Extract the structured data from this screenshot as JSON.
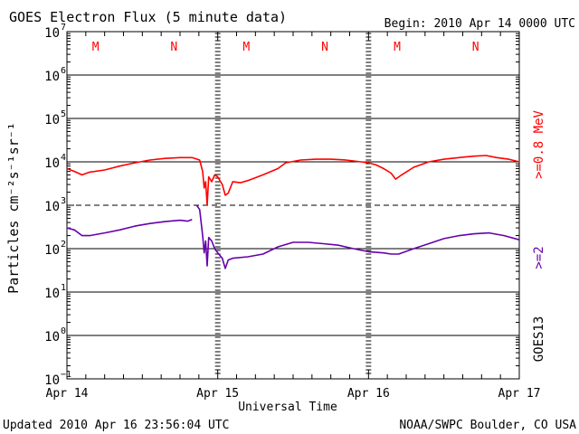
{
  "chart_data": {
    "type": "line",
    "title": "GOES Electron Flux (5 minute data)",
    "begin_label": "Begin: 2010 Apr 14 0000 UTC",
    "xlabel": "Universal Time",
    "ylabel": "Particles cm⁻²s⁻¹sr⁻¹",
    "x_unit": "days since 2010 Apr 14 0000 UTC",
    "xlim": [
      0,
      3
    ],
    "ylim_log10": [
      -1,
      7
    ],
    "y_ticks": [
      {
        "exp": 7,
        "label": "10",
        "sup": "7"
      },
      {
        "exp": 6,
        "label": "10",
        "sup": "6"
      },
      {
        "exp": 5,
        "label": "10",
        "sup": "5"
      },
      {
        "exp": 4,
        "label": "10",
        "sup": "4"
      },
      {
        "exp": 3,
        "label": "10",
        "sup": "3"
      },
      {
        "exp": 2,
        "label": "10",
        "sup": "2"
      },
      {
        "exp": 1,
        "label": "10",
        "sup": "1"
      },
      {
        "exp": 0,
        "label": "10",
        "sup": "0"
      },
      {
        "exp": -1,
        "label": "10",
        "sup": "−1"
      }
    ],
    "x_ticks": [
      {
        "x": 0,
        "label": "Apr 14"
      },
      {
        "x": 1,
        "label": "Apr 15"
      },
      {
        "x": 2,
        "label": "Apr 16"
      },
      {
        "x": 3,
        "label": "Apr 17"
      }
    ],
    "threshold_exp": 3,
    "mn_markers": [
      {
        "x": 0.19,
        "label": "M"
      },
      {
        "x": 0.71,
        "label": "N"
      },
      {
        "x": 1.19,
        "label": "M"
      },
      {
        "x": 1.71,
        "label": "N"
      },
      {
        "x": 2.19,
        "label": "M"
      },
      {
        "x": 2.71,
        "label": "N"
      }
    ],
    "legend": {
      "right_labels": [
        {
          "text": ">=0.8 MeV",
          "color": "#ff0000",
          "name": "legend-high-energy"
        },
        {
          "text": ">=2",
          "color": "#6600aa",
          "name": "legend-low-energy"
        },
        {
          "text": "GOES13",
          "color": "#000000",
          "name": "legend-satellite"
        }
      ]
    },
    "series": [
      {
        "name": ">=0.8 MeV",
        "color": "#ff0000",
        "points": [
          [
            0.0,
            7000
          ],
          [
            0.05,
            6000
          ],
          [
            0.1,
            5000
          ],
          [
            0.15,
            5800
          ],
          [
            0.25,
            6500
          ],
          [
            0.35,
            8000
          ],
          [
            0.45,
            9500
          ],
          [
            0.55,
            11000
          ],
          [
            0.65,
            12000
          ],
          [
            0.75,
            12500
          ],
          [
            0.83,
            12500
          ],
          [
            0.88,
            11000
          ],
          [
            0.9,
            6000
          ],
          [
            0.91,
            2500
          ],
          [
            0.92,
            3500
          ],
          [
            0.93,
            1000
          ],
          [
            0.94,
            4500
          ],
          [
            0.96,
            3500
          ],
          [
            0.98,
            5000
          ],
          [
            1.0,
            4500
          ],
          [
            1.03,
            3000
          ],
          [
            1.05,
            1700
          ],
          [
            1.07,
            1900
          ],
          [
            1.1,
            3500
          ],
          [
            1.15,
            3300
          ],
          [
            1.2,
            3700
          ],
          [
            1.3,
            5000
          ],
          [
            1.4,
            7000
          ],
          [
            1.45,
            9500
          ],
          [
            1.55,
            11000
          ],
          [
            1.65,
            11500
          ],
          [
            1.75,
            11500
          ],
          [
            1.85,
            11000
          ],
          [
            1.95,
            10000
          ],
          [
            2.0,
            9500
          ],
          [
            2.05,
            8500
          ],
          [
            2.1,
            7000
          ],
          [
            2.15,
            5500
          ],
          [
            2.18,
            4000
          ],
          [
            2.22,
            5000
          ],
          [
            2.3,
            7500
          ],
          [
            2.4,
            10000
          ],
          [
            2.5,
            11500
          ],
          [
            2.6,
            12500
          ],
          [
            2.7,
            13500
          ],
          [
            2.78,
            14000
          ],
          [
            2.85,
            12500
          ],
          [
            2.93,
            11500
          ],
          [
            3.0,
            10000
          ]
        ]
      },
      {
        "name": ">=2 MeV",
        "color": "#6600aa",
        "points": [
          [
            0.0,
            300
          ],
          [
            0.05,
            270
          ],
          [
            0.1,
            200
          ],
          [
            0.15,
            200
          ],
          [
            0.25,
            230
          ],
          [
            0.35,
            270
          ],
          [
            0.45,
            330
          ],
          [
            0.55,
            380
          ],
          [
            0.65,
            420
          ],
          [
            0.75,
            450
          ],
          [
            0.8,
            430
          ],
          [
            0.83,
            470
          ],
          null,
          [
            0.86,
            1000
          ],
          [
            0.88,
            800
          ],
          [
            0.9,
            200
          ],
          [
            0.91,
            80
          ],
          [
            0.92,
            150
          ],
          [
            0.93,
            40
          ],
          [
            0.94,
            180
          ],
          [
            0.96,
            150
          ],
          [
            0.98,
            100
          ],
          [
            1.0,
            80
          ],
          [
            1.03,
            60
          ],
          [
            1.05,
            35
          ],
          [
            1.07,
            55
          ],
          [
            1.1,
            60
          ],
          [
            1.2,
            65
          ],
          [
            1.3,
            75
          ],
          [
            1.4,
            110
          ],
          [
            1.5,
            140
          ],
          [
            1.6,
            140
          ],
          [
            1.7,
            130
          ],
          [
            1.8,
            120
          ],
          [
            1.9,
            100
          ],
          [
            2.0,
            85
          ],
          [
            2.1,
            80
          ],
          [
            2.15,
            75
          ],
          [
            2.2,
            75
          ],
          [
            2.3,
            100
          ],
          [
            2.4,
            130
          ],
          [
            2.5,
            170
          ],
          [
            2.6,
            200
          ],
          [
            2.7,
            220
          ],
          [
            2.8,
            230
          ],
          [
            2.9,
            200
          ],
          [
            3.0,
            160
          ]
        ]
      }
    ]
  },
  "footer": {
    "updated": "Updated 2010 Apr 16 23:56:04 UTC",
    "source": "NOAA/SWPC Boulder, CO USA"
  },
  "colors": {
    "high_energy": "#ff0000",
    "low_energy": "#6600aa",
    "axis": "#000000",
    "background": "#ffffff"
  }
}
